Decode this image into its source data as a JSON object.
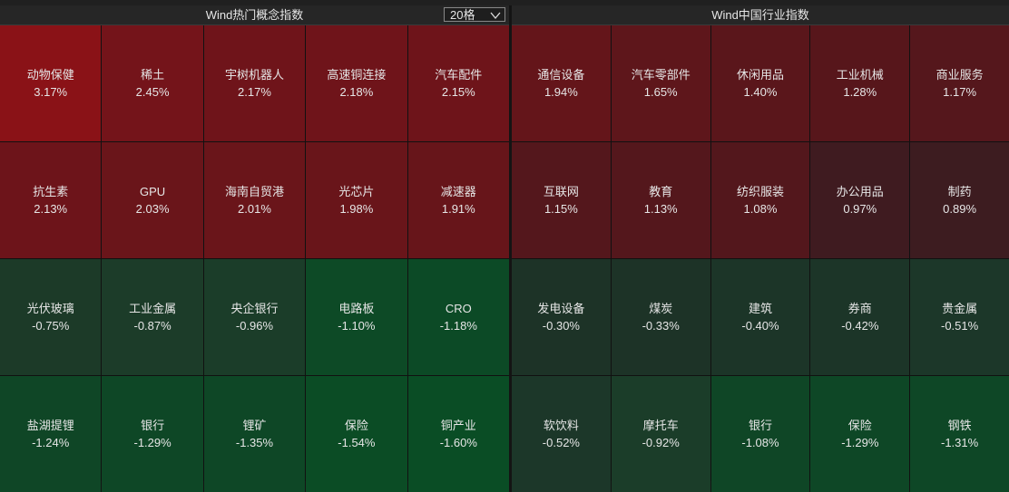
{
  "panels": [
    {
      "title": "Wind热门概念指数",
      "selector": "20格",
      "tiles": [
        {
          "name": "动物保健",
          "change": "3.17%",
          "color": "#8a1217"
        },
        {
          "name": "稀土",
          "change": "2.45%",
          "color": "#74141a"
        },
        {
          "name": "宇树机器人",
          "change": "2.17%",
          "color": "#6f141a"
        },
        {
          "name": "高速铜连接",
          "change": "2.18%",
          "color": "#6f141a"
        },
        {
          "name": "汽车配件",
          "change": "2.15%",
          "color": "#6e141a"
        },
        {
          "name": "抗生素",
          "change": "2.13%",
          "color": "#6d141a"
        },
        {
          "name": "GPU",
          "change": "2.03%",
          "color": "#6a151a"
        },
        {
          "name": "海南自贸港",
          "change": "2.01%",
          "color": "#6a151a"
        },
        {
          "name": "光芯片",
          "change": "1.98%",
          "color": "#69151a"
        },
        {
          "name": "减速器",
          "change": "1.91%",
          "color": "#67151a"
        },
        {
          "name": "光伏玻璃",
          "change": "-0.75%",
          "color": "#1c3a28"
        },
        {
          "name": "工业金属",
          "change": "-0.87%",
          "color": "#1c3c29"
        },
        {
          "name": "央企银行",
          "change": "-0.96%",
          "color": "#1b3d29"
        },
        {
          "name": "电路板",
          "change": "-1.10%",
          "color": "#0d4a26"
        },
        {
          "name": "CRO",
          "change": "-1.18%",
          "color": "#0c4a26"
        },
        {
          "name": "盐湖提锂",
          "change": "-1.24%",
          "color": "#0f4626"
        },
        {
          "name": "银行",
          "change": "-1.29%",
          "color": "#0e4726"
        },
        {
          "name": "锂矿",
          "change": "-1.35%",
          "color": "#0e4726"
        },
        {
          "name": "保险",
          "change": "-1.54%",
          "color": "#0b4c25"
        },
        {
          "name": "铜产业",
          "change": "-1.60%",
          "color": "#0a4d25"
        }
      ]
    },
    {
      "title": "Wind中国行业指数",
      "tiles": [
        {
          "name": "通信设备",
          "change": "1.94%",
          "color": "#64151a"
        },
        {
          "name": "汽车零部件",
          "change": "1.65%",
          "color": "#5e161b"
        },
        {
          "name": "休闲用品",
          "change": "1.40%",
          "color": "#5a161b"
        },
        {
          "name": "工业机械",
          "change": "1.28%",
          "color": "#57161b"
        },
        {
          "name": "商业服务",
          "change": "1.17%",
          "color": "#55171c"
        },
        {
          "name": "互联网",
          "change": "1.15%",
          "color": "#54171c"
        },
        {
          "name": "教育",
          "change": "1.13%",
          "color": "#54171c"
        },
        {
          "name": "纺织服装",
          "change": "1.08%",
          "color": "#53171c"
        },
        {
          "name": "办公用品",
          "change": "0.97%",
          "color": "#3f1b20"
        },
        {
          "name": "制药",
          "change": "0.89%",
          "color": "#3d1c20"
        },
        {
          "name": "发电设备",
          "change": "-0.30%",
          "color": "#1d3327"
        },
        {
          "name": "煤炭",
          "change": "-0.33%",
          "color": "#1d3327"
        },
        {
          "name": "建筑",
          "change": "-0.40%",
          "color": "#1c3528"
        },
        {
          "name": "券商",
          "change": "-0.42%",
          "color": "#1c3528"
        },
        {
          "name": "贵金属",
          "change": "-0.51%",
          "color": "#1c3729"
        },
        {
          "name": "软饮料",
          "change": "-0.52%",
          "color": "#1c3729"
        },
        {
          "name": "摩托车",
          "change": "-0.92%",
          "color": "#1b3d29"
        },
        {
          "name": "银行",
          "change": "-1.08%",
          "color": "#0f4626"
        },
        {
          "name": "保险",
          "change": "-1.29%",
          "color": "#0e4726"
        },
        {
          "name": "钢铁",
          "change": "-1.31%",
          "color": "#0e4726"
        }
      ]
    }
  ]
}
